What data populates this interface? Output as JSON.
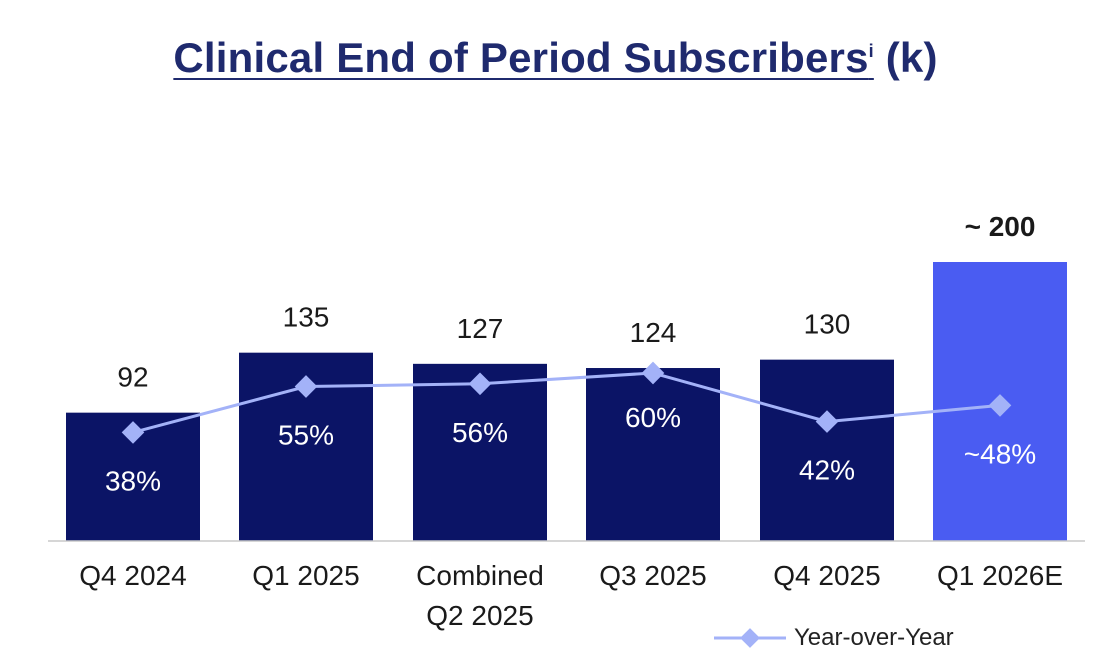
{
  "title": {
    "main": "Clinical End of Period Subscribers",
    "superscript": "i",
    "unit": " (k)"
  },
  "chart_data": {
    "type": "bar",
    "title": "Clinical End of Period Subscribers (k)",
    "categories": [
      [
        "Q4 2024"
      ],
      [
        "Q1 2025"
      ],
      [
        "Combined",
        "Q2 2025"
      ],
      [
        "Q3 2025"
      ],
      [
        "Q4 2025"
      ],
      [
        "Q1 2026E"
      ]
    ],
    "series": [
      {
        "name": "Subscribers (k)",
        "values": [
          92,
          135,
          127,
          124,
          130,
          200
        ],
        "labels": [
          "92",
          "135",
          "127",
          "124",
          "130",
          "~ 200"
        ],
        "colors": [
          "#0b1466",
          "#0b1466",
          "#0b1466",
          "#0b1466",
          "#0b1466",
          "#4a5cf2"
        ]
      },
      {
        "name": "Year-over-Year",
        "type": "line",
        "values": [
          38,
          55,
          56,
          60,
          42,
          48
        ],
        "labels": [
          "38%",
          "55%",
          "56%",
          "60%",
          "42%",
          "~48%"
        ],
        "color": "#a3b2f8"
      }
    ],
    "ylim": [
      0,
      200
    ],
    "yoy_range": [
      0,
      100
    ],
    "legend": {
      "label": "Year-over-Year",
      "position": "bottom-right"
    }
  },
  "colors": {
    "bar": "#0b1466",
    "bar_estimate": "#4a5cf2",
    "line": "#a3b2f8",
    "title": "#1f2a6e"
  }
}
